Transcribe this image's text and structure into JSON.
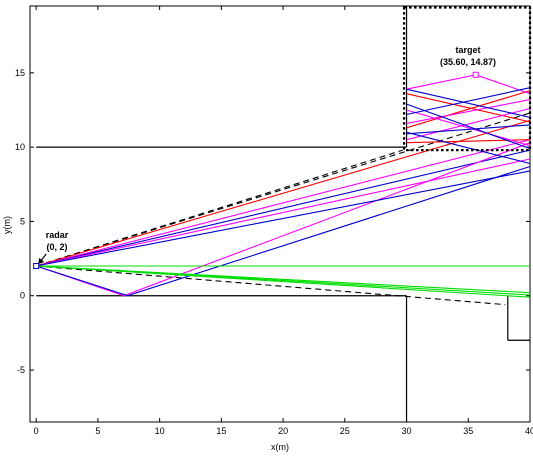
{
  "chart_data": {
    "type": "line",
    "xlabel": "x(m)",
    "ylabel": "y(m)",
    "xlim": [
      -0.5,
      40
    ],
    "ylim": [
      -8.5,
      19.5
    ],
    "xticks": [
      0,
      5,
      10,
      15,
      20,
      25,
      30,
      35,
      40
    ],
    "yticks": [
      -5,
      0,
      5,
      10,
      15
    ],
    "grid": false,
    "colors": {
      "axes": "#000000",
      "walls": "#000000",
      "los": "#000000",
      "red": "#ff0000",
      "magenta": "#ff00ff",
      "blue": "#0000cc",
      "green": "#00dd00"
    },
    "walls": [
      [
        [
          0,
          10
        ],
        [
          30,
          10
        ]
      ],
      [
        [
          0,
          0
        ],
        [
          30,
          0
        ]
      ],
      [
        [
          30,
          0
        ],
        [
          30,
          -8.5
        ]
      ],
      [
        [
          38.2,
          0
        ],
        [
          38.2,
          -3
        ]
      ],
      [
        [
          38.2,
          -3
        ],
        [
          40,
          -3
        ]
      ],
      [
        [
          30,
          10
        ],
        [
          30,
          19.5
        ]
      ]
    ],
    "dashed_box": {
      "x": [
        29.8,
        40
      ],
      "y": [
        9.8,
        19.4
      ]
    },
    "radar": {
      "x": 0,
      "y": 2,
      "label": "radar",
      "coords": "(0, 2)"
    },
    "target": {
      "x": 35.6,
      "y": 14.87,
      "label": "target",
      "coords": "(35.60, 14.87)"
    },
    "dashed_lines": [
      [
        [
          0,
          2
        ],
        [
          29.7,
          9.8
        ]
      ],
      [
        [
          0,
          2
        ],
        [
          40,
          12.3
        ]
      ],
      [
        [
          0,
          2
        ],
        [
          38,
          -0.6
        ]
      ]
    ],
    "paths": [
      {
        "color": "red",
        "points": [
          [
            0,
            2
          ],
          [
            40,
            11.8
          ]
        ]
      },
      {
        "color": "magenta",
        "points": [
          [
            0,
            2
          ],
          [
            40,
            10.5
          ]
        ]
      },
      {
        "color": "blue",
        "points": [
          [
            0,
            2
          ],
          [
            40,
            9.8
          ]
        ]
      },
      {
        "color": "magenta",
        "points": [
          [
            0,
            2
          ],
          [
            7.1,
            0
          ],
          [
            40,
            10.3
          ]
        ]
      },
      {
        "color": "blue",
        "points": [
          [
            0,
            2
          ],
          [
            7.4,
            0
          ],
          [
            40,
            8.7
          ]
        ]
      },
      {
        "color": "magenta",
        "points": [
          [
            0,
            2
          ],
          [
            40,
            9.2
          ]
        ]
      },
      {
        "color": "blue",
        "points": [
          [
            0,
            2
          ],
          [
            40,
            8.4
          ]
        ]
      },
      {
        "color": "red",
        "points": [
          [
            30,
            13.6
          ],
          [
            40,
            11.7
          ]
        ]
      },
      {
        "color": "red",
        "points": [
          [
            30,
            11.3
          ],
          [
            40,
            13.8
          ]
        ]
      },
      {
        "color": "red",
        "points": [
          [
            30,
            10.3
          ],
          [
            40,
            10.5
          ]
        ]
      },
      {
        "color": "magenta",
        "points": [
          [
            30,
            13.9
          ],
          [
            35.6,
            14.87
          ],
          [
            40,
            13.6
          ]
        ]
      },
      {
        "color": "magenta",
        "points": [
          [
            30,
            12.5
          ],
          [
            40,
            10.1
          ]
        ]
      },
      {
        "color": "magenta",
        "points": [
          [
            30,
            10.5
          ],
          [
            40,
            12.6
          ]
        ]
      },
      {
        "color": "magenta",
        "points": [
          [
            30,
            11.6
          ],
          [
            40,
            13.2
          ]
        ]
      },
      {
        "color": "blue",
        "points": [
          [
            30,
            13.9
          ],
          [
            40,
            12.0
          ]
        ]
      },
      {
        "color": "blue",
        "points": [
          [
            30,
            12.2
          ],
          [
            40,
            14.0
          ]
        ]
      },
      {
        "color": "blue",
        "points": [
          [
            30,
            10.9
          ],
          [
            40,
            11.5
          ]
        ]
      },
      {
        "color": "blue",
        "points": [
          [
            30,
            11.0
          ],
          [
            40,
            8.9
          ]
        ]
      },
      {
        "color": "blue",
        "points": [
          [
            30,
            12.9
          ],
          [
            40,
            9.9
          ]
        ]
      },
      {
        "color": "green",
        "points": [
          [
            0,
            2
          ],
          [
            40,
            2
          ]
        ]
      },
      {
        "color": "green",
        "points": [
          [
            0,
            2
          ],
          [
            40,
            0.2
          ]
        ]
      },
      {
        "color": "green",
        "points": [
          [
            0,
            2
          ],
          [
            40,
            0.05
          ]
        ]
      },
      {
        "color": "green",
        "points": [
          [
            0,
            2
          ],
          [
            40,
            -0.1
          ]
        ]
      }
    ]
  }
}
